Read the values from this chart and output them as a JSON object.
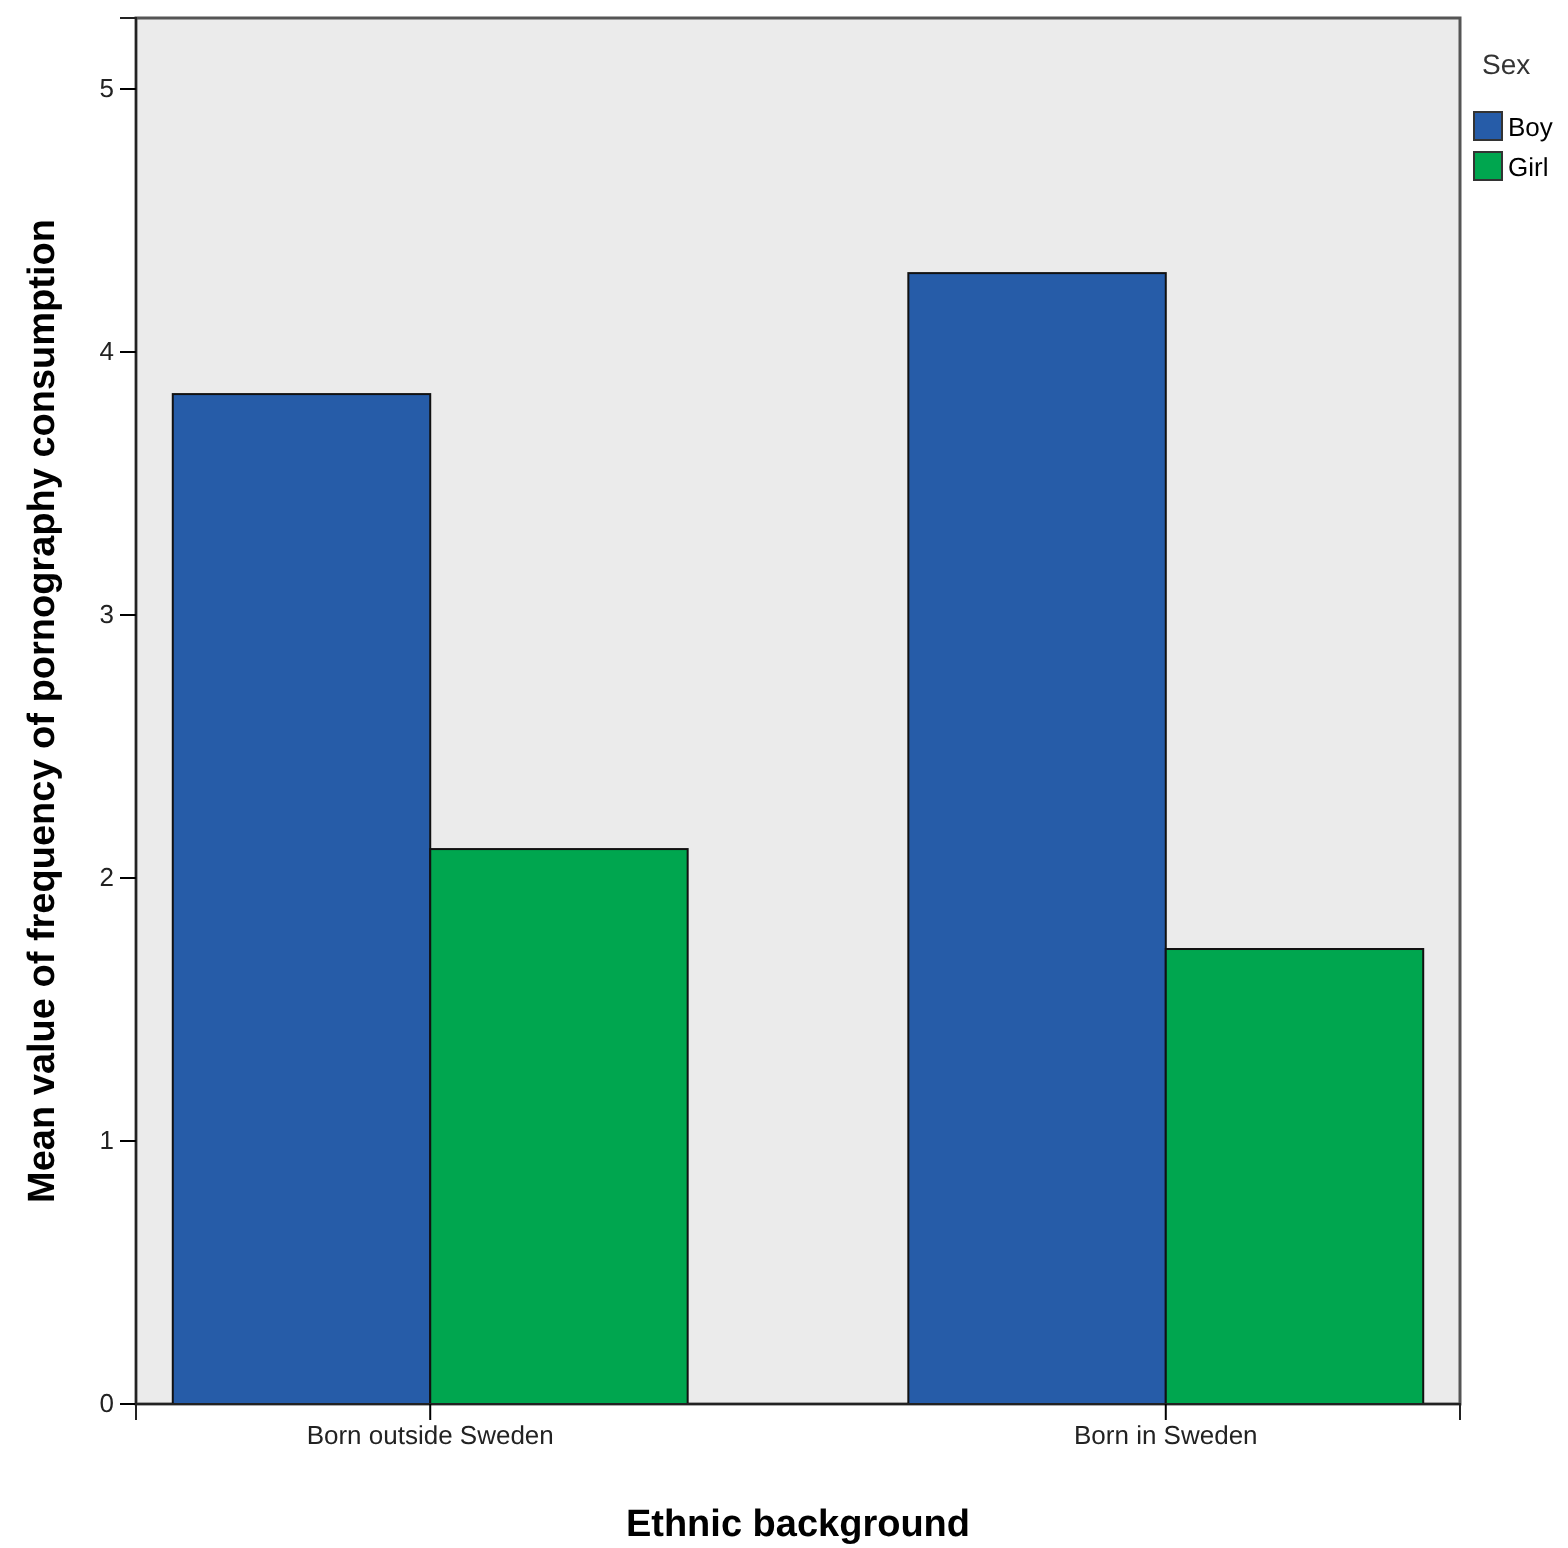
{
  "chart_data": {
    "type": "bar",
    "xlabel": "Ethnic background",
    "ylabel": "Mean value of frequency of pornography consumption",
    "legend_title": "Sex",
    "categories": [
      "Born outside Sweden",
      "Born in Sweden"
    ],
    "series": [
      {
        "name": "Boy",
        "color": "#265ca8",
        "values": [
          3.84,
          4.3
        ]
      },
      {
        "name": "Girl",
        "color": "#00a64f",
        "values": [
          2.11,
          1.73
        ]
      }
    ],
    "ylim": [
      0,
      5.27
    ],
    "yticks": [
      0,
      1,
      2,
      3,
      4,
      5
    ],
    "grid": false,
    "legend": "right"
  }
}
